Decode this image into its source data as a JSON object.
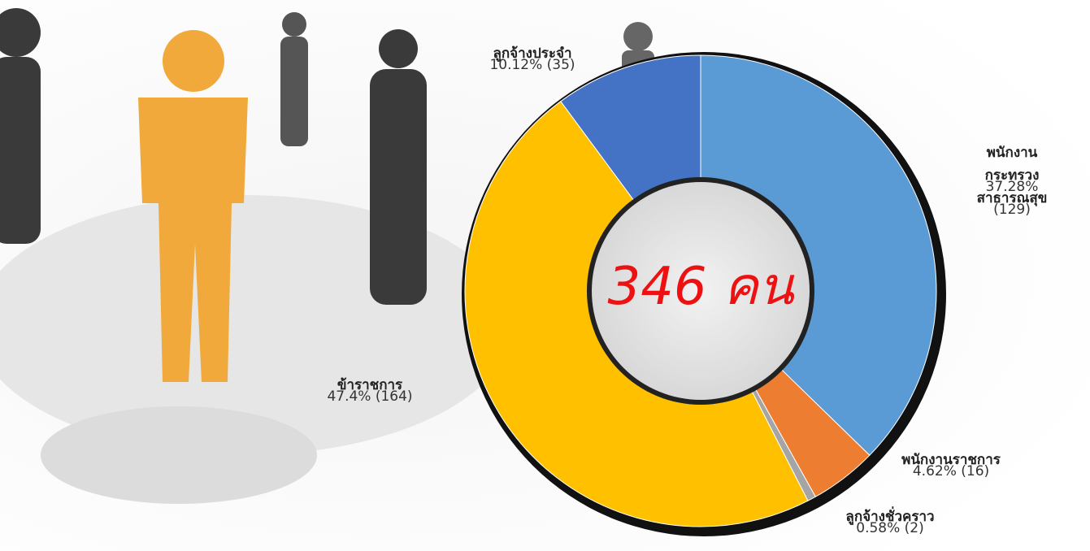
{
  "chart_data": {
    "type": "donut",
    "center_label": "346 คน",
    "categories": [
      "พนักงานกระทรวง\nสาธารณสุข",
      "พนักงานราชการ",
      "ลูกจ้างชั่วคราว",
      "ข้าราชการ",
      "ลูกจ้างประจำ"
    ],
    "values": [
      37.28,
      4.62,
      0.58,
      47.4,
      10.12
    ],
    "counts": [
      129,
      16,
      2,
      164,
      35
    ],
    "value_labels": [
      "37.28% (129)",
      "4.62% (16)",
      "0.58% (2)",
      "47.4% (164)",
      "10.12% (35)"
    ],
    "colors": [
      "#5b9bd5",
      "#ed7d31",
      "#a5a5a5",
      "#ffc000",
      "#4472c4"
    ]
  }
}
